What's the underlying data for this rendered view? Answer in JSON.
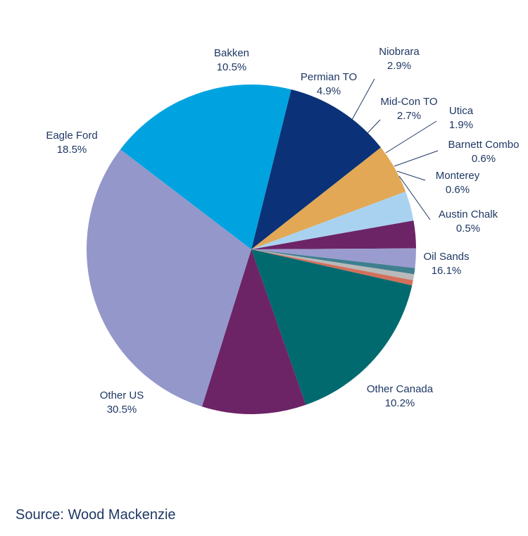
{
  "chart_data": {
    "type": "pie",
    "title": "",
    "slices": [
      {
        "name": "Bakken",
        "value": 10.5,
        "label": "10.5%",
        "color": "#0b3278"
      },
      {
        "name": "Permian TO",
        "value": 4.9,
        "label": "4.9%",
        "color": "#e2a855"
      },
      {
        "name": "Niobrara",
        "value": 2.9,
        "label": "2.9%",
        "color": "#a9d2f0"
      },
      {
        "name": "Mid-Con TO",
        "value": 2.7,
        "label": "2.7%",
        "color": "#6c2466"
      },
      {
        "name": "Utica",
        "value": 1.9,
        "label": "1.9%",
        "color": "#9a9ccf"
      },
      {
        "name": "Barnett Combo",
        "value": 0.6,
        "label": "0.6%",
        "color": "#3f7f8f"
      },
      {
        "name": "Monterey",
        "value": 0.6,
        "label": "0.6%",
        "color": "#b9b9b9"
      },
      {
        "name": "Austin Chalk",
        "value": 0.5,
        "label": "0.5%",
        "color": "#d36f5b"
      },
      {
        "name": "Oil Sands",
        "value": 16.1,
        "label": "16.1%",
        "color": "#016a6f"
      },
      {
        "name": "Other Canada",
        "value": 10.2,
        "label": "10.2%",
        "color": "#6c2466"
      },
      {
        "name": "Other US",
        "value": 30.5,
        "label": "30.5%",
        "color": "#9497ca"
      },
      {
        "name": "Eagle Ford",
        "value": 18.5,
        "label": "18.5%",
        "color": "#00a3e0"
      }
    ]
  },
  "source": "Source: Wood Mackenzie"
}
